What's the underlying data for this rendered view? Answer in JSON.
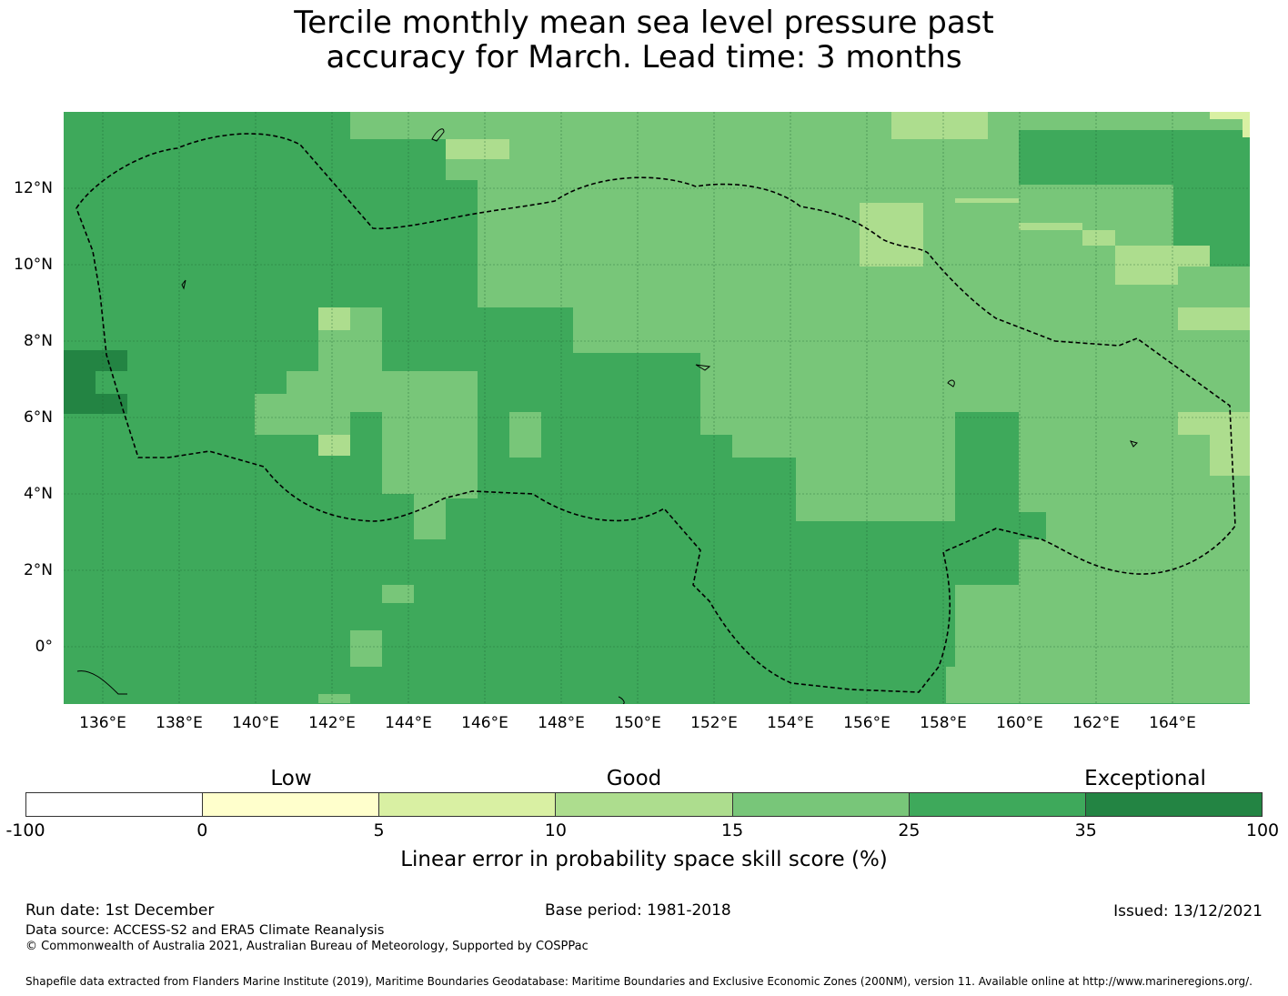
{
  "title_line1": "Tercile monthly mean sea level pressure past",
  "title_line2": "accuracy for March. Lead time: 3 months",
  "map": {
    "lon_labels": [
      "136°E",
      "138°E",
      "140°E",
      "142°E",
      "144°E",
      "146°E",
      "148°E",
      "150°E",
      "152°E",
      "154°E",
      "156°E",
      "158°E",
      "160°E",
      "162°E",
      "164°E"
    ],
    "lat_labels": [
      "12°N",
      "10°N",
      "8°N",
      "6°N",
      "4°N",
      "2°N",
      "0°"
    ],
    "base_color": "#3ea95b",
    "palette": {
      "c15": "#78c679",
      "c10": "#addd8e",
      "c5": "#d9f0a3",
      "c35": "#238443"
    }
  },
  "colorbar": {
    "categories": [
      "Low",
      "Good",
      "Exceptional"
    ],
    "ticks": [
      "-100",
      "0",
      "5",
      "10",
      "15",
      "25",
      "35",
      "100"
    ],
    "colors": [
      "#ffffff",
      "#ffffcc",
      "#d9f0a3",
      "#addd8e",
      "#78c679",
      "#3ea95b",
      "#238443"
    ],
    "label": "Linear error in probability space skill score (%)"
  },
  "footer": {
    "run_date": "Run date: 1st December",
    "base_period": "Base period: 1981-2018",
    "issued": "Issued: 13/12/2021",
    "data_source": "Data source: ACCESS-S2 and ERA5 Climate Reanalysis",
    "copyright": "© Commonwealth of Australia 2021, Australian Bureau of Meteorology, Supported by COSPPac",
    "shapefile": "Shapefile data extracted from Flanders Marine Institute (2019), Maritime Boundaries Geodatabase: Maritime Boundaries and Exclusive Economic Zones (200NM), version 11. Available online at http://www.marineregions.org/."
  }
}
